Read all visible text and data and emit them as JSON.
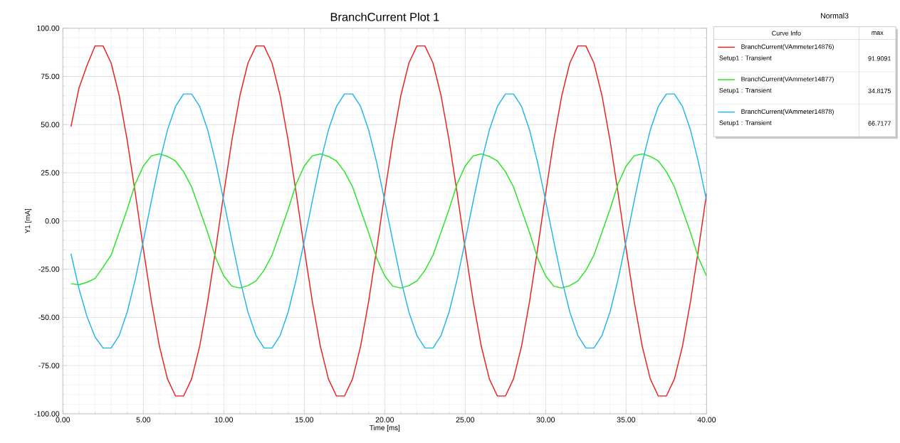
{
  "chart_data": {
    "type": "line",
    "title": "BranchCurrent Plot 1",
    "xlabel": "Time [ms]",
    "ylabel": "Y1 [mA]",
    "legend_title": "Curve Info",
    "annotations": [
      "Normal3",
      "max",
      "Setup1 : Transient",
      "91.9091",
      "Setup1 : Transient",
      "34.8175",
      "Setup1 : Transient",
      "66.7177"
    ],
    "x": [
      0.5,
      1,
      1.5,
      2,
      2.5,
      3,
      3.5,
      4,
      4.5,
      5,
      5.5,
      6,
      6.5,
      7,
      7.5,
      8,
      8.5,
      9,
      9.5,
      10,
      10.5,
      11,
      11.5,
      12,
      12.5,
      13,
      13.5,
      14,
      14.5,
      15,
      15.5,
      16,
      16.5,
      17,
      17.5,
      18,
      18.5,
      19,
      19.5,
      20,
      20.5,
      21,
      21.5,
      22,
      22.5,
      23,
      23.5,
      24,
      24.5,
      25,
      25.5,
      26,
      26.5,
      27,
      27.5,
      28,
      28.5,
      29,
      29.5,
      30,
      30.5,
      31,
      31.5,
      32,
      32.5,
      33,
      33.5,
      34,
      34.5,
      35,
      35.5,
      36,
      36.5,
      37,
      37.5,
      38,
      38.5,
      39,
      39.5,
      40
    ],
    "series": [
      {
        "name": "BranchCurrent(VAmmeter14876)",
        "color": "#ee1c1c",
        "values": [
          48.9,
          68.9,
          80.7,
          90.8,
          90.8,
          81.9,
          65.0,
          41.7,
          14.4,
          -14.4,
          -41.7,
          -65.0,
          -81.9,
          -90.8,
          -90.8,
          -81.9,
          -65.0,
          -41.7,
          -14.4,
          14.4,
          41.7,
          65.0,
          81.9,
          90.8,
          90.8,
          81.9,
          65.0,
          41.7,
          14.4,
          -14.4,
          -41.7,
          -65.0,
          -81.9,
          -90.8,
          -90.8,
          -81.9,
          -65.0,
          -41.7,
          -14.4,
          14.4,
          41.7,
          65.0,
          81.9,
          90.8,
          90.8,
          81.9,
          65.0,
          41.7,
          14.4,
          -14.4,
          -41.7,
          -65.0,
          -81.9,
          -90.8,
          -90.8,
          -81.9,
          -65.0,
          -41.7,
          -14.4,
          14.4,
          41.7,
          65.0,
          81.9,
          90.8,
          90.8,
          81.9,
          65.0,
          41.7,
          14.4,
          -14.4,
          -41.7,
          -65.0,
          -81.9,
          -90.8,
          -90.8,
          -81.9,
          -65.0,
          -41.7,
          -14.4,
          14.4
        ]
      },
      {
        "name": "BranchCurrent(VAmmeter14877)",
        "color": "#22e61e",
        "values": [
          -32.5,
          -33.1,
          -31.8,
          -29.8,
          -23.9,
          -17.7,
          -5.8,
          6.1,
          19.3,
          28.5,
          33.8,
          34.8,
          33.5,
          31.1,
          25.6,
          17.7,
          5.8,
          -6.1,
          -19.3,
          -28.5,
          -33.8,
          -34.8,
          -33.5,
          -31.1,
          -25.6,
          -17.7,
          -5.8,
          6.1,
          19.3,
          28.5,
          33.8,
          34.8,
          33.5,
          31.1,
          25.6,
          17.7,
          5.8,
          -6.1,
          -19.3,
          -28.5,
          -33.8,
          -34.8,
          -33.5,
          -31.1,
          -25.6,
          -17.7,
          -5.8,
          6.1,
          19.3,
          28.5,
          33.8,
          34.8,
          33.5,
          31.1,
          25.6,
          17.7,
          5.8,
          -6.1,
          -19.3,
          -28.5,
          -33.8,
          -34.8,
          -33.5,
          -31.1,
          -25.6,
          -17.7,
          -5.8,
          6.1,
          19.3,
          28.5,
          33.8,
          34.8,
          33.5,
          31.1,
          25.6,
          17.7,
          5.8,
          -6.1,
          -19.3,
          -28.5
        ]
      },
      {
        "name": "BranchCurrent(VAmmeter14878)",
        "color": "#1eb4f0",
        "values": [
          -16.9,
          -35.1,
          -49.6,
          -60.2,
          -65.9,
          -65.9,
          -59.4,
          -47.2,
          -30.3,
          -10.4,
          10.4,
          30.3,
          47.2,
          59.4,
          65.9,
          65.9,
          59.4,
          47.2,
          30.3,
          10.4,
          -10.4,
          -30.3,
          -47.2,
          -59.4,
          -65.9,
          -65.9,
          -59.4,
          -47.2,
          -30.3,
          -10.4,
          10.4,
          30.3,
          47.2,
          59.4,
          65.9,
          65.9,
          59.4,
          47.2,
          30.3,
          10.4,
          -10.4,
          -30.3,
          -47.2,
          -59.4,
          -65.9,
          -65.9,
          -59.4,
          -47.2,
          -30.3,
          -10.4,
          10.4,
          30.3,
          47.2,
          59.4,
          65.9,
          65.9,
          59.4,
          47.2,
          30.3,
          10.4,
          -10.4,
          -30.3,
          -47.2,
          -59.4,
          -65.9,
          -65.9,
          -59.4,
          -47.2,
          -30.3,
          -10.4,
          10.4,
          30.3,
          47.2,
          59.4,
          65.9,
          65.9,
          59.4,
          47.2,
          30.3,
          10.4
        ]
      }
    ],
    "xlim": [
      0,
      40
    ],
    "ylim": [
      -100,
      100
    ],
    "xticks": [
      {
        "value": 0,
        "label": "0.00"
      },
      {
        "value": 5,
        "label": "5.00"
      },
      {
        "value": 10,
        "label": "10.00"
      },
      {
        "value": 15,
        "label": "15.00"
      },
      {
        "value": 20,
        "label": "20.00"
      },
      {
        "value": 25,
        "label": "25.00"
      },
      {
        "value": 30,
        "label": "30.00"
      },
      {
        "value": 35,
        "label": "35.00"
      },
      {
        "value": 40,
        "label": "40.00"
      }
    ],
    "yticks": [
      {
        "value": -100,
        "label": "-100.00"
      },
      {
        "value": -75,
        "label": "-75.00"
      },
      {
        "value": -50,
        "label": "-50.00"
      },
      {
        "value": -25,
        "label": "-25.00"
      },
      {
        "value": 0,
        "label": "0.00"
      },
      {
        "value": 25,
        "label": "25.00"
      },
      {
        "value": 50,
        "label": "50.00"
      },
      {
        "value": 75,
        "label": "75.00"
      },
      {
        "value": 100,
        "label": "100.00"
      }
    ],
    "grid": true,
    "legend": "top right",
    "marker": "none",
    "line_style": "solid"
  }
}
